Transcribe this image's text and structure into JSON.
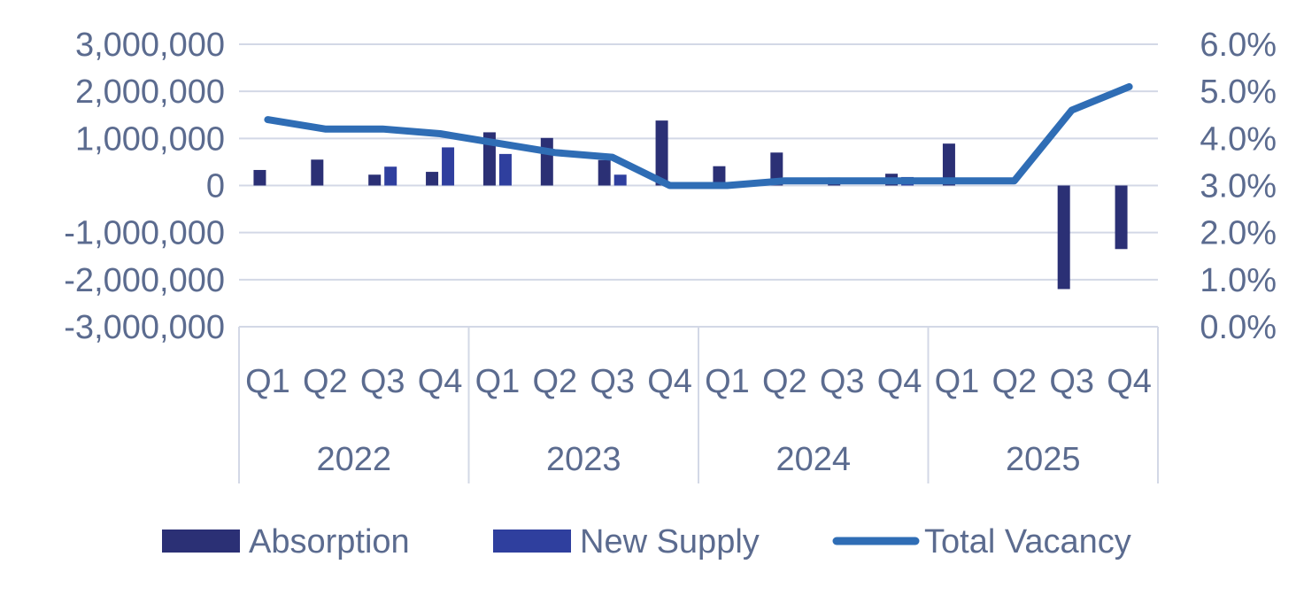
{
  "chart_data": {
    "type": "bar+line",
    "title": "",
    "categories": [
      "Q1",
      "Q2",
      "Q3",
      "Q4",
      "Q1",
      "Q2",
      "Q3",
      "Q4",
      "Q1",
      "Q2",
      "Q3",
      "Q4",
      "Q1",
      "Q2",
      "Q3",
      "Q4"
    ],
    "years": [
      "2022",
      "2023",
      "2024",
      "2025"
    ],
    "y_left": {
      "range": [
        -3000000,
        3000000
      ],
      "ticks": [
        3000000,
        2000000,
        1000000,
        0,
        -1000000,
        -2000000,
        -3000000
      ],
      "tick_labels": [
        "3,000,000",
        "2,000,000",
        "1,000,000",
        "0",
        "-1,000,000",
        "-2,000,000",
        "-3,000,000"
      ]
    },
    "y_right": {
      "range": [
        0,
        6
      ],
      "ticks": [
        6,
        5,
        4,
        3,
        2,
        1,
        0
      ],
      "tick_labels": [
        "6.0%",
        "5.0%",
        "4.0%",
        "3.0%",
        "2.0%",
        "1.0%",
        "0.0%"
      ]
    },
    "series": [
      {
        "name": "Absorption",
        "type": "bar",
        "axis": "left",
        "color": "#2b3075",
        "values": [
          330000,
          550000,
          230000,
          290000,
          1130000,
          1010000,
          540000,
          1380000,
          410000,
          700000,
          170000,
          250000,
          890000,
          0,
          -2200000,
          -1350000
        ]
      },
      {
        "name": "New Supply",
        "type": "bar",
        "axis": "left",
        "color": "#2f3f9e",
        "values": [
          0,
          0,
          400000,
          810000,
          670000,
          0,
          230000,
          0,
          0,
          0,
          0,
          180000,
          0,
          0,
          0,
          0
        ]
      },
      {
        "name": "Total Vacancy",
        "type": "line",
        "axis": "right",
        "color": "#2f6db5",
        "values": [
          4.4,
          4.2,
          4.2,
          4.1,
          3.9,
          3.7,
          3.6,
          3.0,
          3.0,
          3.1,
          3.1,
          3.1,
          3.1,
          3.1,
          4.6,
          5.1
        ]
      }
    ],
    "legend": [
      "Absorption",
      "New Supply",
      "Total Vacancy"
    ],
    "legend_position": "bottom",
    "grid": true
  }
}
